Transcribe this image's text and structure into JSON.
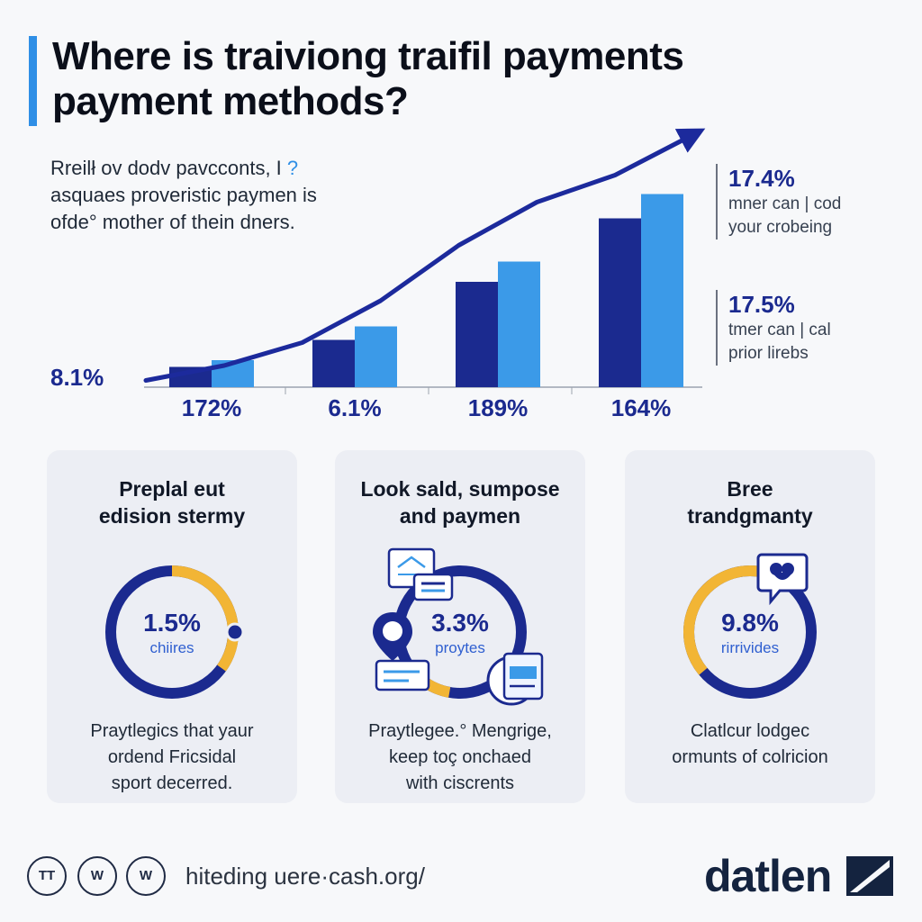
{
  "title_lines": [
    "Where is traiviong traifil payments",
    "payment methods?"
  ],
  "intro_lines": [
    "Rreilł ov dodv pavcconts, I",
    "asquaes proveristic paymen is",
    "ofde° mother of thein dners."
  ],
  "intro_mark": "?",
  "callouts": [
    {
      "value": "17.4%",
      "line1": "mner can | cod",
      "line2": "your crobeing"
    },
    {
      "value": "17.5%",
      "line1": "tmer can | cal",
      "line2": "prior lirebs"
    }
  ],
  "colors": {
    "dark_blue": "#1b2a8f",
    "light_blue": "#3b9ae8",
    "trend": "#1c2a9c",
    "ring_yellow": "#f2b535",
    "accent": "#2f8fe6"
  },
  "chart_data": {
    "type": "bar",
    "categories": [
      "172%",
      "6.1%",
      "189%",
      "164%"
    ],
    "series": [
      {
        "values": [
          1.5,
          3.5,
          7.8,
          12.5
        ]
      },
      {
        "values": [
          2.0,
          4.5,
          9.3,
          14.3
        ]
      }
    ],
    "trend_line": [
      0.5,
      1.6,
      3.3,
      6.4,
      10.5,
      13.7,
      15.7,
      18.7
    ],
    "y_annotation": "8.1%",
    "ylim": [
      0,
      20
    ],
    "legend": "none",
    "grid": false
  },
  "cards": [
    {
      "title_lines": [
        "Preplal eut",
        "edision stermy"
      ],
      "value": "1.5%",
      "sub": "chiires",
      "ring_fraction": 0.35,
      "text_lines": [
        "Praytlegics that yaur",
        "ordend Fricsidal",
        "sport decerred."
      ]
    },
    {
      "title_lines": [
        "Look sald, sumpose",
        "and paymen"
      ],
      "value": "3.3%",
      "sub": "proytes",
      "ring_fraction": 0.12,
      "text_lines": [
        "Praytlegee.° Mengrige,",
        "keep toç onchaed",
        "with ciscrents"
      ]
    },
    {
      "title_lines": [
        "Bree",
        "trandgmanty"
      ],
      "value": "9.8%",
      "sub": "rirrivides",
      "ring_fraction": 0.38,
      "text_lines": [
        "Clatlcur lodgec",
        "ormunts of colricion"
      ]
    }
  ],
  "social": [
    "TT",
    "W",
    "W"
  ],
  "footer_url": "hiteding uere·cash.org/",
  "brand": "datlen"
}
